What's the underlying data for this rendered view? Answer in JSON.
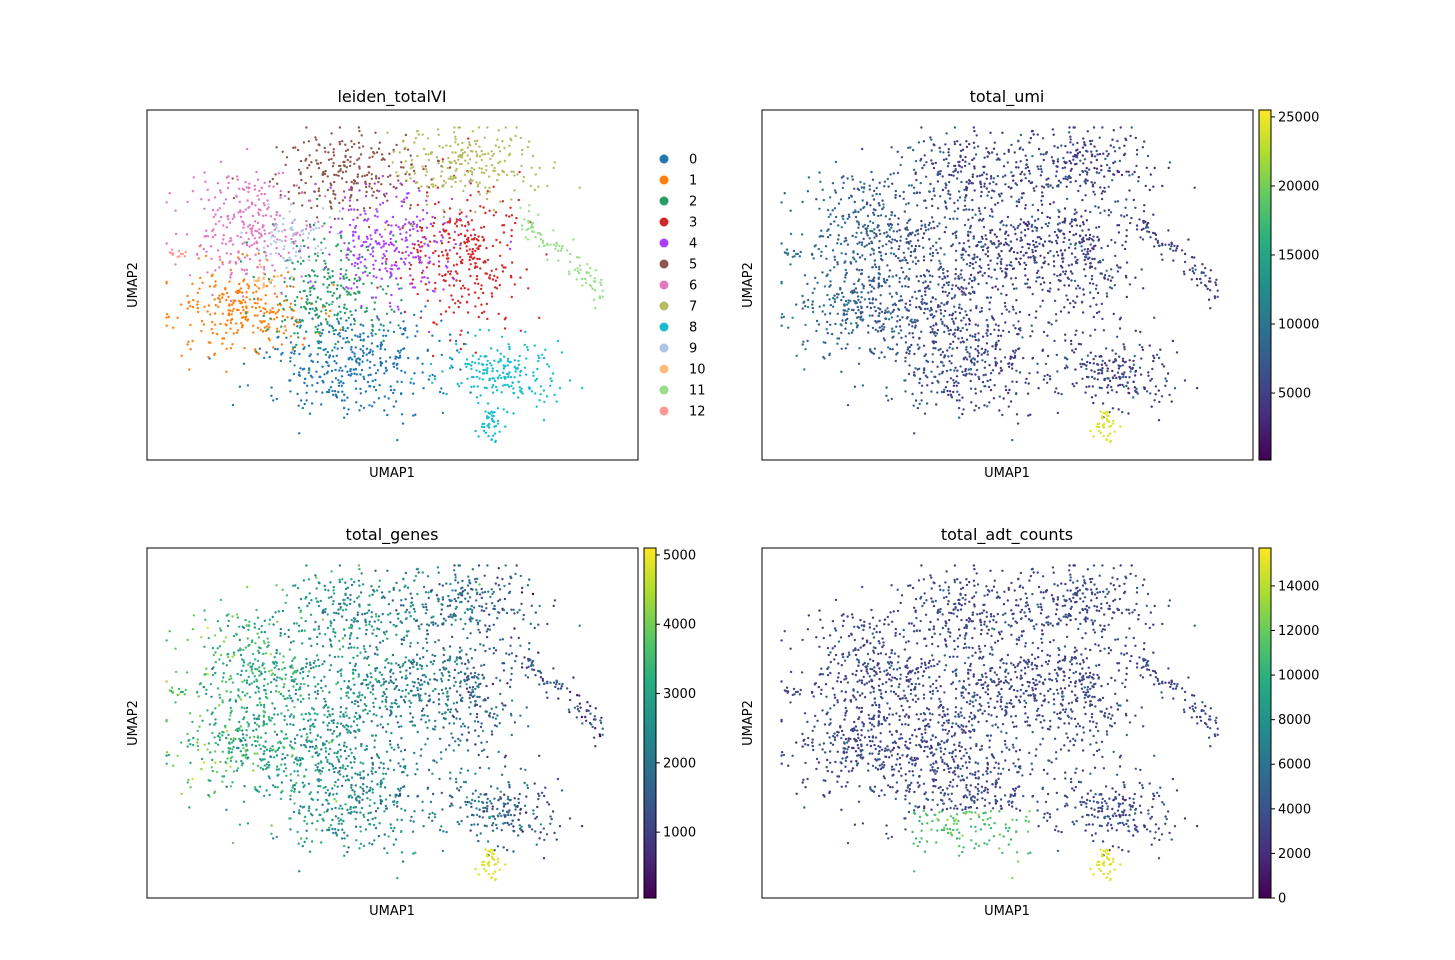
{
  "chart_data": [
    {
      "type": "scatter",
      "title": "leiden_totalVI",
      "xlabel": "UMAP1",
      "ylabel": "UMAP2",
      "color_mode": "categorical",
      "legend": {
        "placement": "right",
        "entries": [
          "0",
          "1",
          "2",
          "3",
          "4",
          "5",
          "6",
          "7",
          "8",
          "9",
          "10",
          "11",
          "12"
        ],
        "colors": [
          "#1f77b4",
          "#ff7f0e",
          "#279e68",
          "#d62728",
          "#aa40fc",
          "#8c564b",
          "#e377c2",
          "#b5bd61",
          "#17becf",
          "#aec7e8",
          "#ffbb78",
          "#98df8a",
          "#ff9896"
        ]
      }
    },
    {
      "type": "scatter",
      "title": "total_umi",
      "xlabel": "UMAP1",
      "ylabel": "UMAP2",
      "color_mode": "continuous",
      "colormap": "viridis",
      "colorbar": {
        "min": 150,
        "max": 25500,
        "ticks": [
          5000,
          10000,
          15000,
          20000,
          25000
        ],
        "tick_labels": [
          "5000",
          "10000",
          "15000",
          "20000",
          "25000"
        ]
      }
    },
    {
      "type": "scatter",
      "title": "total_genes",
      "xlabel": "UMAP1",
      "ylabel": "UMAP2",
      "color_mode": "continuous",
      "colormap": "viridis",
      "colorbar": {
        "min": 50,
        "max": 5100,
        "ticks": [
          1000,
          2000,
          3000,
          4000,
          5000
        ],
        "tick_labels": [
          "1000",
          "2000",
          "3000",
          "4000",
          "5000"
        ]
      }
    },
    {
      "type": "scatter",
      "title": "total_adt_counts",
      "xlabel": "UMAP1",
      "ylabel": "UMAP2",
      "color_mode": "continuous",
      "colormap": "viridis",
      "colorbar": {
        "min": 0,
        "max": 15700,
        "ticks": [
          0,
          2000,
          4000,
          6000,
          8000,
          10000,
          12000,
          14000
        ],
        "tick_labels": [
          "0",
          "2000",
          "4000",
          "6000",
          "8000",
          "10000",
          "12000",
          "14000"
        ]
      }
    }
  ]
}
